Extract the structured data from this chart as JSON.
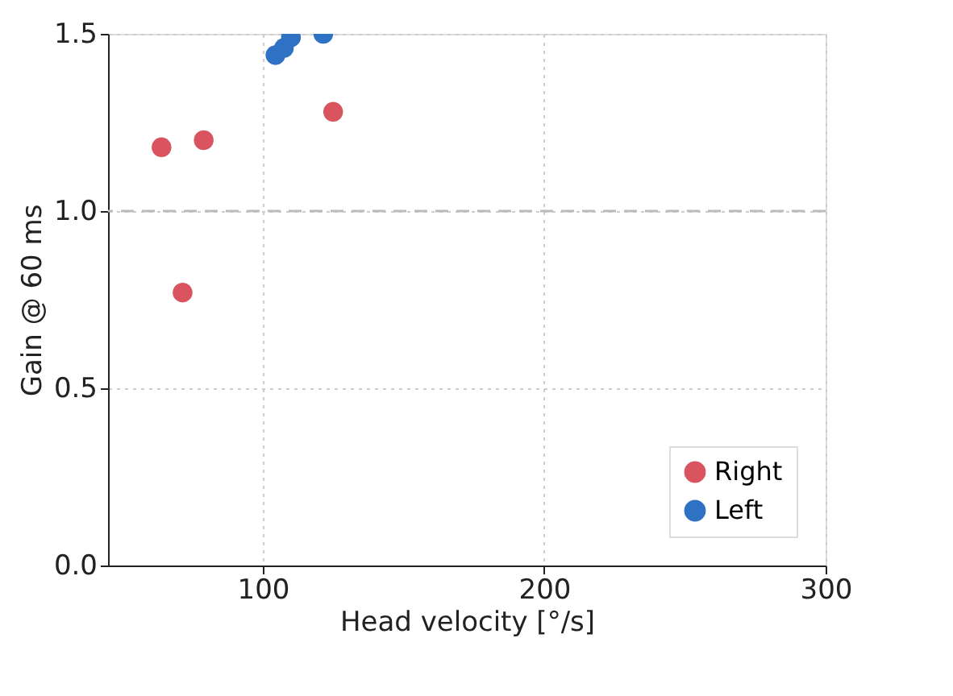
{
  "chart_data": {
    "type": "scatter",
    "xlabel": "Head velocity [°/s]",
    "ylabel": "Gain @ 60 ms",
    "series": [
      {
        "name": "Right",
        "color": "#d9545f",
        "x": [
          64,
          79,
          71.5,
          125
        ],
        "values": [
          1.18,
          1.2,
          0.77,
          1.28
        ]
      },
      {
        "name": "Left",
        "color": "#2f72c4",
        "x": [
          104.5,
          107.5,
          110,
          121.5
        ],
        "values": [
          1.44,
          1.46,
          1.49,
          1.5
        ]
      }
    ],
    "xlim": [
      45,
      300
    ],
    "xticks": [
      100,
      200,
      300
    ],
    "ylim": [
      0,
      1.5
    ],
    "yticks": [
      {
        "value": 0,
        "label": "0.0"
      },
      {
        "value": 0.5,
        "label": "0.5"
      },
      {
        "value": 1.0,
        "label": "1.0"
      },
      {
        "value": 1.5,
        "label": "1.5"
      }
    ],
    "ref_lines": [
      {
        "axis": "y",
        "value": 1.0,
        "color": "#bbbbbb",
        "line_style": "dashed"
      }
    ],
    "grid": true,
    "legend": "bottom right",
    "marker": "circle"
  }
}
